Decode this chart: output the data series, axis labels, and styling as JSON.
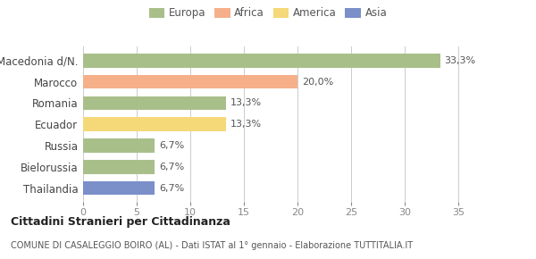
{
  "categories": [
    "Thailandia",
    "Bielorussia",
    "Russia",
    "Ecuador",
    "Romania",
    "Marocco",
    "Macedonia d/N."
  ],
  "values": [
    6.7,
    6.7,
    6.7,
    13.3,
    13.3,
    20.0,
    33.3
  ],
  "labels": [
    "6,7%",
    "6,7%",
    "6,7%",
    "13,3%",
    "13,3%",
    "20,0%",
    "33,3%"
  ],
  "colors": [
    "#7b8fc9",
    "#a8bf8a",
    "#a8bf8a",
    "#f5d878",
    "#a8bf8a",
    "#f5b08a",
    "#a8bf8a"
  ],
  "legend": [
    {
      "label": "Europa",
      "color": "#a8bf8a"
    },
    {
      "label": "Africa",
      "color": "#f5b08a"
    },
    {
      "label": "America",
      "color": "#f5d878"
    },
    {
      "label": "Asia",
      "color": "#7b8fc9"
    }
  ],
  "xlim": [
    0,
    37
  ],
  "xticks": [
    0,
    5,
    10,
    15,
    20,
    25,
    30,
    35
  ],
  "title_bold": "Cittadini Stranieri per Cittadinanza",
  "subtitle": "COMUNE DI CASALEGGIO BOIRO (AL) - Dati ISTAT al 1° gennaio - Elaborazione TUTTITALIA.IT",
  "background_color": "#ffffff",
  "grid_color": "#cccccc"
}
